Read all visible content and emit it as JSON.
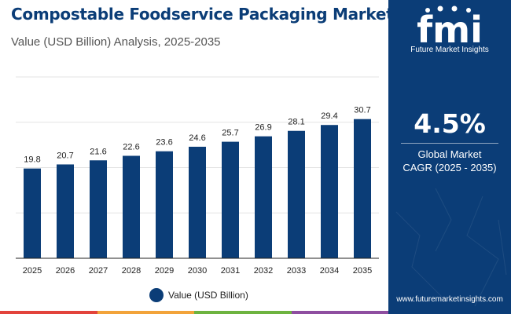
{
  "header": {
    "title": "Compostable Foodservice Packaging Market",
    "subtitle": "Value (USD Billion) Analysis, 2025-2035"
  },
  "chart_data": {
    "type": "bar",
    "title": "Compostable Foodservice Packaging Market",
    "subtitle": "Value (USD Billion) Analysis, 2025-2035",
    "categories": [
      "2025",
      "2026",
      "2027",
      "2028",
      "2029",
      "2030",
      "2031",
      "2032",
      "2033",
      "2034",
      "2035"
    ],
    "series": [
      {
        "name": "Value (USD Billion)",
        "values": [
          19.8,
          20.7,
          21.6,
          22.6,
          23.6,
          24.6,
          25.7,
          26.9,
          28.1,
          29.4,
          30.7
        ],
        "labels": [
          "19.8",
          "20.7",
          "21.6",
          "22.6",
          "23.6",
          "24.6",
          "25.7",
          "26.9",
          "28.1",
          "29.4",
          "30.7"
        ]
      }
    ],
    "xlabel": "",
    "ylabel": "",
    "ylim": [
      0,
      40
    ],
    "y_ticks_shown": false,
    "grid": true,
    "legend_position": "bottom-center",
    "bar_color": "#0b3d77"
  },
  "legend": {
    "label": "Value (USD Billion)"
  },
  "side_panel": {
    "logo_letters": "fmi",
    "brand_name": "Future Market Insights",
    "cagr_value": "4.5%",
    "cagr_label_line1": "Global Market",
    "cagr_label_line2": "CAGR (2025 - 2035)",
    "website": "www.futuremarketinsights.com"
  },
  "colors": {
    "brand_blue": "#0b3d77",
    "strip": [
      "#e2433b",
      "#f2a33a",
      "#6db33f",
      "#8e4ea0"
    ]
  }
}
